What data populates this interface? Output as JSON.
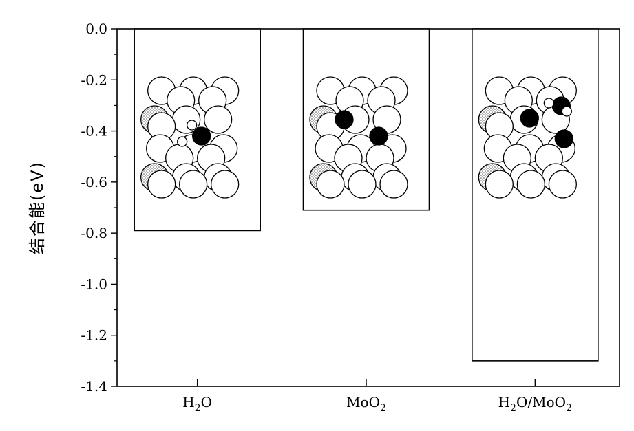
{
  "chart_data": {
    "type": "bar",
    "categories": [
      "H2O",
      "MoO2",
      "H2O/MoO2"
    ],
    "category_labels": [
      {
        "main": "H",
        "sub": "2",
        "rest": "O",
        "sub2": "",
        "rest2": ""
      },
      {
        "main": "MoO",
        "sub": "2",
        "rest": "",
        "sub2": "",
        "rest2": ""
      },
      {
        "main": "H",
        "sub": "2",
        "rest": "O/MoO",
        "sub2": "2",
        "rest2": ""
      }
    ],
    "values": [
      -0.79,
      -0.71,
      -1.3
    ],
    "ylabel": "结合能(eV)",
    "ylim": [
      -1.4,
      0.0
    ],
    "yticks": [
      0.0,
      -0.2,
      -0.4,
      -0.6,
      -0.8,
      -1.0,
      -1.2,
      -1.4
    ],
    "ytick_labels": [
      "0.0",
      "-0.2",
      "-0.4",
      "-0.6",
      "-0.8",
      "-1.0",
      "-1.2",
      "-1.4"
    ],
    "grid": false,
    "bar_fill": "#ffffff",
    "bar_stroke": "#000000",
    "insets": [
      {
        "description": "atomic structure",
        "adsorbate": "H2O"
      },
      {
        "description": "atomic structure",
        "adsorbate": "MoO2"
      },
      {
        "description": "atomic structure",
        "adsorbate": "H2O/MoO2"
      }
    ]
  }
}
